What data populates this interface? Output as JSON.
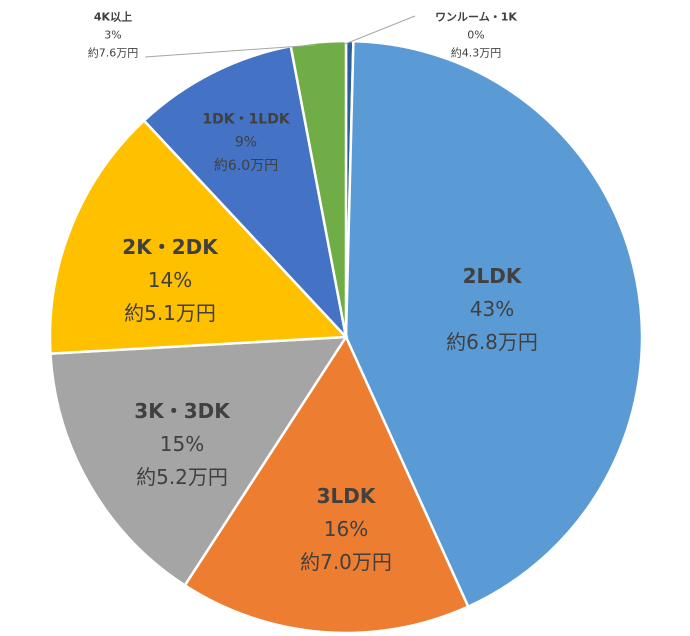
{
  "chart_data": {
    "type": "pie",
    "title": "",
    "start": "top",
    "direction": "clockwise",
    "slices": [
      {
        "name": "ワンルーム・1K",
        "value": 0.4,
        "percent_label": "0%",
        "rent_label": "約4.3万円",
        "color": "#2e5d9b"
      },
      {
        "name": "2LDK",
        "value": 43,
        "percent_label": "43%",
        "rent_label": "約6.8万円",
        "color": "#5b9bd5"
      },
      {
        "name": "3LDK",
        "value": 16,
        "percent_label": "16%",
        "rent_label": "約7.0万円",
        "color": "#ed7d31"
      },
      {
        "name": "3K・3DK",
        "value": 15,
        "percent_label": "15%",
        "rent_label": "約5.2万円",
        "color": "#a5a5a5"
      },
      {
        "name": "2K・2DK",
        "value": 14,
        "percent_label": "14%",
        "rent_label": "約5.1万円",
        "color": "#ffc000"
      },
      {
        "name": "1DK・1LDK",
        "value": 9,
        "percent_label": "9%",
        "rent_label": "約6.0万円",
        "color": "#4472c4"
      },
      {
        "name": "4K以上",
        "value": 3,
        "percent_label": "3%",
        "rent_label": "約7.6万円",
        "color": "#70ad47"
      }
    ]
  }
}
